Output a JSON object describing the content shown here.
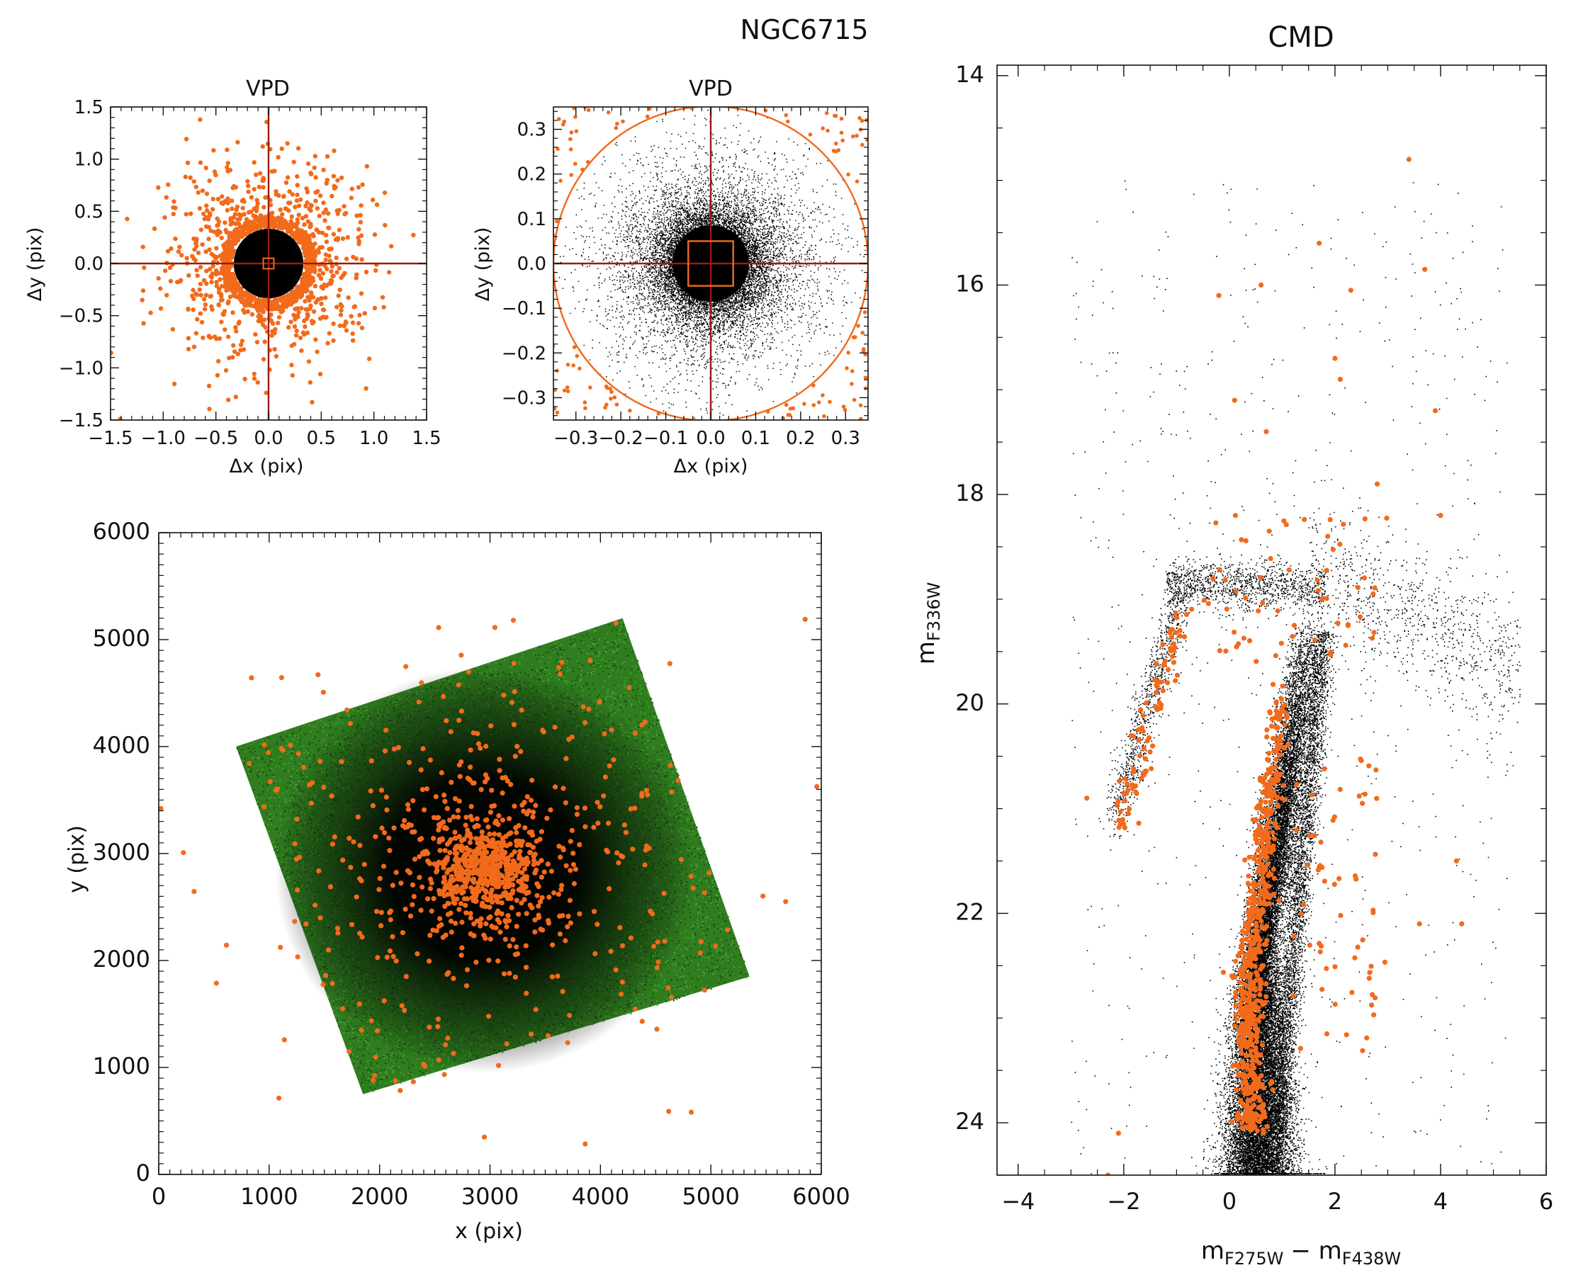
{
  "figure_title": "NGC6715",
  "colors": {
    "accent": "#f26a1b",
    "reference_lines": "#9b1c0e",
    "main_points": "#000000",
    "field_points": "#2f7d1f"
  },
  "chart_data": [
    {
      "id": "vpd_wide",
      "type": "scatter",
      "title": "VPD",
      "xlabel": "Δx (pix)",
      "ylabel": "Δy (pix)",
      "xlim": [
        -1.5,
        1.5
      ],
      "ylim": [
        -1.5,
        1.5
      ],
      "xticks": [
        -1.5,
        -1.0,
        -0.5,
        0.0,
        0.5,
        1.0,
        1.5
      ],
      "yticks": [
        -1.5,
        -1.0,
        -0.5,
        0.0,
        0.5,
        1.0,
        1.5
      ],
      "xtick_labels": [
        "−1.5",
        "−1.0",
        "−0.5",
        "0.0",
        "0.5",
        "1.0",
        "1.5"
      ],
      "ytick_labels": [
        "−1.5",
        "−1.0",
        "−0.5",
        "0.0",
        "0.5",
        "1.0",
        "1.5"
      ],
      "grid": false,
      "series": [
        {
          "color": "#000000",
          "description": "dense core of stars within the selection circle (radius ~0.35 pix)"
        },
        {
          "color": "#f26a1b",
          "description": "rejected stars spread out to about ±1.5 pix"
        }
      ],
      "reference_lines": {
        "x": 0.0,
        "y": 0.0,
        "box_halfwidth": 0.05
      }
    },
    {
      "id": "vpd_zoom",
      "type": "scatter",
      "title": "VPD",
      "xlabel": "Δx (pix)",
      "ylabel": "Δy (pix)",
      "xlim": [
        -0.35,
        0.35
      ],
      "ylim": [
        -0.35,
        0.35
      ],
      "xticks": [
        -0.3,
        -0.2,
        -0.1,
        0.0,
        0.1,
        0.2,
        0.3
      ],
      "yticks": [
        -0.3,
        -0.2,
        -0.1,
        0.0,
        0.1,
        0.2,
        0.3
      ],
      "xtick_labels": [
        "−0.3",
        "−0.2",
        "−0.1",
        "0.0",
        "0.1",
        "0.2",
        "0.3"
      ],
      "ytick_labels": [
        "−0.3",
        "−0.2",
        "−0.1",
        "0.0",
        "0.1",
        "0.2",
        "0.3"
      ],
      "grid": false,
      "selection_circle_radius": 0.35,
      "central_box_halfwidth": 0.05,
      "series": [
        {
          "color": "#000000",
          "description": "stars inside the circle, strongly concentrated near 0,0"
        },
        {
          "color": "#f26a1b",
          "description": "stars outside the circle in the corners"
        }
      ]
    },
    {
      "id": "xy_map",
      "type": "scatter",
      "xlabel": "x (pix)",
      "ylabel": "y (pix)",
      "xlim": [
        0,
        6000
      ],
      "ylim": [
        0,
        6000
      ],
      "xticks": [
        0,
        1000,
        2000,
        3000,
        4000,
        5000,
        6000
      ],
      "yticks": [
        0,
        1000,
        2000,
        3000,
        4000,
        5000,
        6000
      ],
      "xtick_labels": [
        "0",
        "1000",
        "2000",
        "3000",
        "4000",
        "5000",
        "6000"
      ],
      "ytick_labels": [
        "0",
        "1000",
        "2000",
        "3000",
        "4000",
        "5000",
        "6000"
      ],
      "grid": false,
      "field_corners": [
        [
          700,
          4000
        ],
        [
          4200,
          5200
        ],
        [
          5350,
          1850
        ],
        [
          1850,
          750
        ]
      ],
      "cluster_center": [
        2950,
        2850
      ],
      "series": [
        {
          "color": "#2f7d1f",
          "description": "stars across the rotated field"
        },
        {
          "color": "#000000",
          "description": "denser central population"
        },
        {
          "color": "#f26a1b",
          "description": "stars concentrated around the cluster centre near (2950, 2850)"
        }
      ]
    },
    {
      "id": "cmd",
      "type": "scatter",
      "title": "CMD",
      "xlabel_main": "m",
      "xlabel_sub_1": "F275W",
      "xlabel_mid": "− m",
      "xlabel_sub_2": "F438W",
      "ylabel_main": "m",
      "ylabel_sub": "F336W",
      "xlim": [
        -4.4,
        6.0
      ],
      "ylim": [
        24.5,
        13.9
      ],
      "y_inverted": true,
      "xticks": [
        -4,
        -2,
        0,
        2,
        4,
        6
      ],
      "yticks": [
        14,
        16,
        18,
        20,
        22,
        24
      ],
      "xtick_labels": [
        "−4",
        "−2",
        "0",
        "2",
        "4",
        "6"
      ],
      "ytick_labels": [
        "14",
        "16",
        "18",
        "20",
        "22",
        "24"
      ],
      "grid": false,
      "series": [
        {
          "color": "#000000",
          "description": "main sequence from about (0.5, 24.5) up to (1.5, 19.5), horizontal branch near m=18.8 from colour -1 to 4, blue branch down to (-2, 21)"
        },
        {
          "color": "#f26a1b",
          "description": "selected stars following the blue side of the main sequence and bright stars near m=14.8 to 18"
        }
      ]
    }
  ]
}
